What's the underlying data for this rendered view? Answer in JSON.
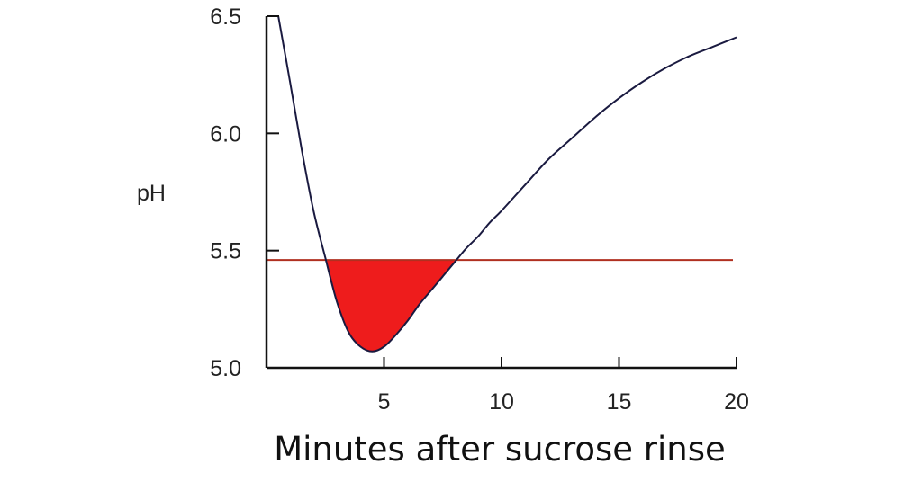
{
  "chart_data": {
    "type": "line",
    "title": "",
    "xlabel": "Minutes after sucrose rinse",
    "ylabel": "pH",
    "xlim": [
      0,
      20
    ],
    "ylim": [
      5.0,
      6.5
    ],
    "x_ticks": [
      5,
      10,
      15,
      20
    ],
    "x_tick_labels": [
      "5",
      "10",
      "15",
      "20"
    ],
    "y_ticks": [
      5.0,
      5.5,
      6.0,
      6.5
    ],
    "y_tick_labels": [
      "5.0",
      "5.5",
      "6.0",
      "6.5"
    ],
    "grid": false,
    "series": [
      {
        "x": [
          0.5,
          1.0,
          1.5,
          2.0,
          2.5,
          3.0,
          3.5,
          4.0,
          4.5,
          5.0,
          5.5,
          6.0,
          6.5,
          7.0,
          7.5,
          8.0,
          8.5,
          9.0,
          9.5,
          10.0,
          11.0,
          12.0,
          13.0,
          14.0,
          15.0,
          16.0,
          17.0,
          18.0,
          19.0,
          20.0
        ],
        "y": [
          6.5,
          6.22,
          5.93,
          5.67,
          5.47,
          5.28,
          5.15,
          5.09,
          5.07,
          5.09,
          5.14,
          5.2,
          5.27,
          5.33,
          5.39,
          5.45,
          5.51,
          5.56,
          5.62,
          5.67,
          5.78,
          5.89,
          5.98,
          6.07,
          6.15,
          6.22,
          6.28,
          6.33,
          6.37,
          6.41
        ],
        "color": "#1a1a40"
      }
    ],
    "reference_line": {
      "y": 5.46,
      "color": "#b03020"
    },
    "shaded_region": {
      "below": 5.46,
      "color": "#ee1c1c"
    }
  }
}
